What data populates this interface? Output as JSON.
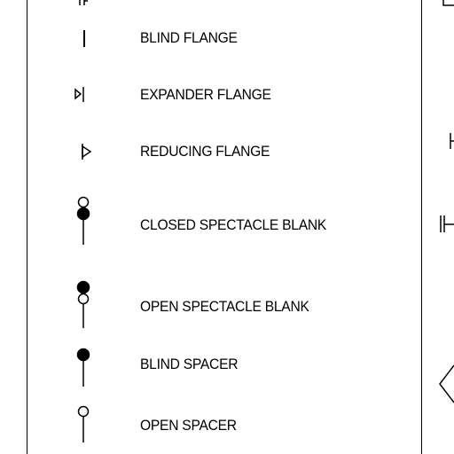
{
  "legend": {
    "items": [
      {
        "label": "BLIND FLANGE",
        "icon": "blind-flange-icon"
      },
      {
        "label": "EXPANDER FLANGE",
        "icon": "expander-flange-icon"
      },
      {
        "label": "REDUCING FLANGE",
        "icon": "reducing-flange-icon"
      },
      {
        "label": "CLOSED SPECTACLE BLANK",
        "icon": "closed-spectacle-blank-icon"
      },
      {
        "label": "OPEN SPECTACLE BLANK",
        "icon": "open-spectacle-blank-icon"
      },
      {
        "label": "BLIND SPACER",
        "icon": "blind-spacer-icon"
      },
      {
        "label": "OPEN SPACER",
        "icon": "open-spacer-icon"
      }
    ]
  },
  "colors": {
    "line": "#000000",
    "background": "#ffffff"
  }
}
